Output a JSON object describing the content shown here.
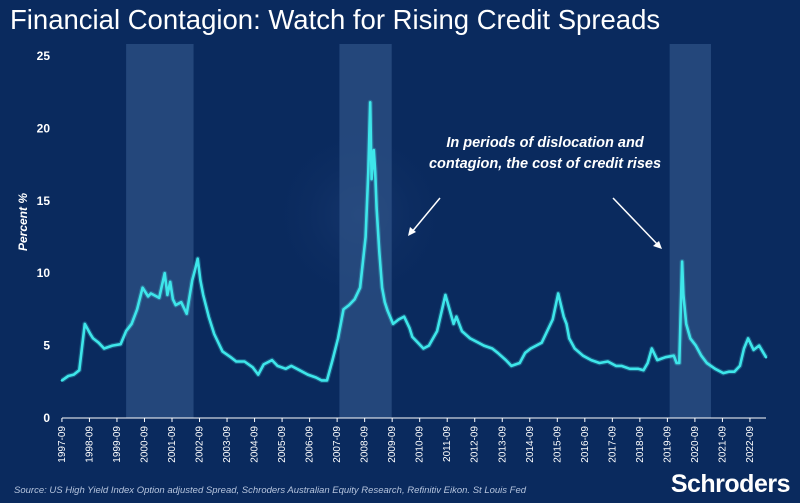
{
  "title": "Financial Contagion: Watch for Rising Credit Spreads",
  "source": "Source: US High Yield Index Option adjusted Spread, Schroders Australian Equity Research, Refinitiv Eikon. St Louis Fed",
  "brand": "Schroders",
  "annotation": "In periods of dislocation and contagion, the cost of credit rises",
  "colors": {
    "background": "#0a2a5e",
    "line": "#3ee6ea",
    "shade": "#2e5286",
    "text": "#ffffff"
  },
  "chart_data": {
    "type": "line",
    "title": "Financial Contagion: Watch for Rising Credit Spreads",
    "xlabel": "",
    "ylabel": "Percent %",
    "ylim": [
      0,
      25
    ],
    "yticks": [
      0,
      5,
      10,
      15,
      20,
      25
    ],
    "xlim": [
      1997.67,
      2023.25
    ],
    "xticks": [
      "1997-09",
      "1998-09",
      "1999-09",
      "2000-09",
      "2001-09",
      "2002-09",
      "2003-09",
      "2004-09",
      "2005-09",
      "2006-09",
      "2007-09",
      "2008-09",
      "2009-09",
      "2010-09",
      "2011-09",
      "2012-09",
      "2013-09",
      "2014-09",
      "2015-09",
      "2016-09",
      "2017-09",
      "2018-09",
      "2019-09",
      "2020-09",
      "2021-09",
      "2022-09"
    ],
    "shaded_periods": [
      [
        2000.0,
        2002.45
      ],
      [
        2007.75,
        2009.65
      ],
      [
        2019.75,
        2021.25
      ]
    ],
    "series": [
      {
        "name": "US High Yield Index Option adjusted Spread",
        "x": [
          1997.67,
          1997.9,
          1998.1,
          1998.3,
          1998.5,
          1998.7,
          1998.8,
          1999.0,
          1999.2,
          1999.5,
          1999.8,
          2000.0,
          2000.2,
          2000.4,
          2000.6,
          2000.8,
          2000.9,
          2001.0,
          2001.2,
          2001.4,
          2001.5,
          2001.6,
          2001.7,
          2001.8,
          2002.0,
          2002.2,
          2002.4,
          2002.5,
          2002.6,
          2002.7,
          2002.8,
          2003.0,
          2003.2,
          2003.5,
          2003.8,
          2004.0,
          2004.3,
          2004.6,
          2004.8,
          2005.0,
          2005.3,
          2005.5,
          2005.8,
          2006.0,
          2006.3,
          2006.6,
          2006.9,
          2007.1,
          2007.3,
          2007.5,
          2007.7,
          2007.9,
          2008.1,
          2008.3,
          2008.5,
          2008.7,
          2008.8,
          2008.87,
          2008.92,
          2009.0,
          2009.05,
          2009.1,
          2009.2,
          2009.3,
          2009.4,
          2009.5,
          2009.7,
          2009.9,
          2010.1,
          2010.3,
          2010.4,
          2010.6,
          2010.8,
          2011.0,
          2011.3,
          2011.6,
          2011.75,
          2011.9,
          2012.0,
          2012.2,
          2012.5,
          2012.8,
          2013.0,
          2013.3,
          2013.5,
          2013.8,
          2014.0,
          2014.3,
          2014.5,
          2014.7,
          2014.9,
          2015.1,
          2015.3,
          2015.5,
          2015.7,
          2015.9,
          2016.0,
          2016.1,
          2016.3,
          2016.6,
          2016.9,
          2017.2,
          2017.5,
          2017.8,
          2018.0,
          2018.3,
          2018.6,
          2018.8,
          2018.95,
          2019.1,
          2019.3,
          2019.6,
          2019.9,
          2020.0,
          2020.1,
          2020.2,
          2020.25,
          2020.35,
          2020.5,
          2020.7,
          2020.9,
          2021.1,
          2021.4,
          2021.7,
          2021.9,
          2022.1,
          2022.3,
          2022.45,
          2022.6,
          2022.8,
          2023.0,
          2023.25
        ],
        "values": [
          2.6,
          2.9,
          3.0,
          3.3,
          6.5,
          5.8,
          5.5,
          5.2,
          4.8,
          5.0,
          5.1,
          6.0,
          6.5,
          7.5,
          9.0,
          8.4,
          8.6,
          8.5,
          8.3,
          10.0,
          8.5,
          9.4,
          8.2,
          7.8,
          8.0,
          7.2,
          9.5,
          10.2,
          11.0,
          9.5,
          8.5,
          7.0,
          5.8,
          4.6,
          4.2,
          3.9,
          3.9,
          3.5,
          3.0,
          3.7,
          4.0,
          3.6,
          3.4,
          3.6,
          3.3,
          3.0,
          2.8,
          2.6,
          2.6,
          4.0,
          5.5,
          7.5,
          7.8,
          8.2,
          9.0,
          12.5,
          17.0,
          21.8,
          16.5,
          18.5,
          17.0,
          14.5,
          11.5,
          9.0,
          8.0,
          7.4,
          6.5,
          6.8,
          7.0,
          6.2,
          5.6,
          5.2,
          4.8,
          5.0,
          6.0,
          8.5,
          7.5,
          6.5,
          7.0,
          6.0,
          5.5,
          5.2,
          5.0,
          4.8,
          4.5,
          4.0,
          3.6,
          3.8,
          4.5,
          4.8,
          5.0,
          5.2,
          6.0,
          6.8,
          8.6,
          7.0,
          6.5,
          5.5,
          4.8,
          4.3,
          4.0,
          3.8,
          3.9,
          3.6,
          3.6,
          3.4,
          3.4,
          3.3,
          3.8,
          4.8,
          4.0,
          4.2,
          4.3,
          3.8,
          3.8,
          10.8,
          8.5,
          6.5,
          5.5,
          5.0,
          4.3,
          3.8,
          3.4,
          3.1,
          3.2,
          3.2,
          3.6,
          4.8,
          5.5,
          4.7,
          5.0,
          4.2
        ]
      }
    ]
  }
}
